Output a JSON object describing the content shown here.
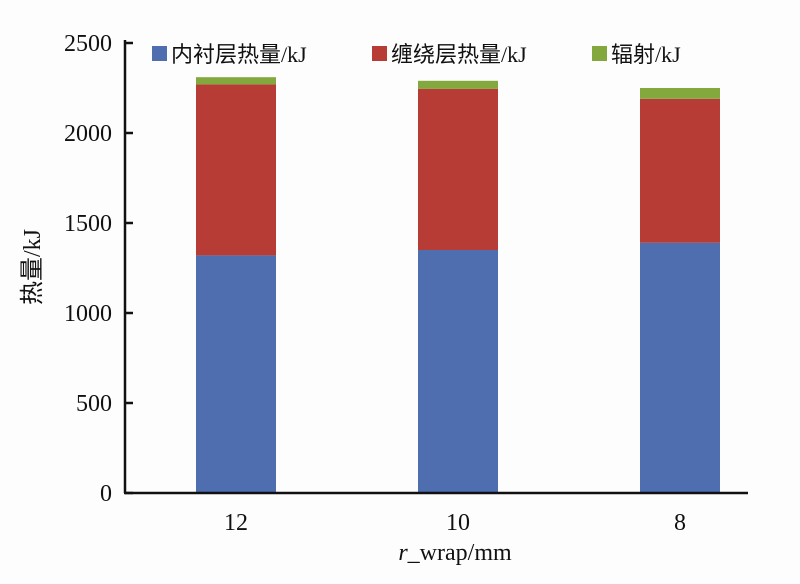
{
  "chart_data": {
    "type": "bar",
    "stacked": true,
    "categories": [
      "12",
      "10",
      "8"
    ],
    "series": [
      {
        "name": "内衬层热量/kJ",
        "values": [
          1320,
          1350,
          1390
        ],
        "color": "#4f6eb0"
      },
      {
        "name": "缠绕层热量/kJ",
        "values": [
          950,
          895,
          800
        ],
        "color": "#b83c36"
      },
      {
        "name": "辐射/kJ",
        "values": [
          40,
          45,
          60
        ],
        "color": "#82a83e"
      }
    ],
    "title": "",
    "xlabel_italic": "r",
    "xlabel_rest": "_wrap/mm",
    "ylabel": "热量/kJ",
    "ylim": [
      0,
      2500
    ],
    "yticks": [
      0,
      500,
      1000,
      1500,
      2000,
      2500
    ],
    "grid": false,
    "legend": "top"
  }
}
